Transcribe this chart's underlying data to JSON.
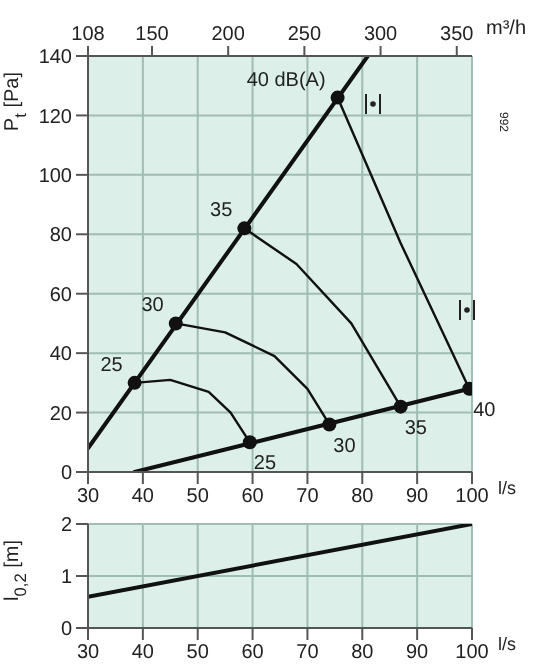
{
  "chart_data": [
    {
      "type": "line",
      "xlabel": "l/s",
      "x2label": "m³/h",
      "ylabel": "P$_{t}$ [Pa]",
      "xlim": [
        30,
        100
      ],
      "xticks": [
        30,
        40,
        50,
        60,
        70,
        80,
        90,
        100
      ],
      "x2lim": [
        108,
        360
      ],
      "x2ticks": [
        108,
        150,
        200,
        250,
        300,
        350
      ],
      "ylim": [
        0,
        140
      ],
      "yticks": [
        0,
        20,
        40,
        60,
        80,
        100,
        120,
        140
      ],
      "grid": true,
      "series": [
        {
          "x": [
            30,
            81
          ],
          "values": [
            8,
            140
          ],
          "color": "#111111"
        },
        {
          "x": [
            38.5,
            99.5
          ],
          "values": [
            0,
            28
          ],
          "color": "#111111"
        },
        {
          "x": [
            38.5,
            45,
            52,
            56,
            59.5
          ],
          "values": [
            30,
            31,
            27,
            20,
            10
          ],
          "color": "#111111"
        },
        {
          "x": [
            46,
            55,
            64,
            70,
            74
          ],
          "values": [
            50,
            47,
            39,
            28,
            16
          ],
          "color": "#111111"
        },
        {
          "x": [
            58.5,
            68,
            78,
            87
          ],
          "values": [
            82,
            70,
            50,
            22
          ],
          "color": "#111111"
        },
        {
          "x": [
            75.5,
            87,
            99.5
          ],
          "values": [
            126,
            77,
            28
          ],
          "color": "#111111"
        },
        {
          "type": "scatter",
          "x": [
            38.5,
            46,
            58.5,
            75.5,
            59.5,
            74,
            87,
            99.5
          ],
          "values": [
            30,
            50,
            82,
            126,
            10,
            16,
            22,
            28
          ],
          "color": "#111111"
        }
      ],
      "annotations": [
        {
          "text": "25",
          "x": 38.5,
          "y": 30
        },
        {
          "text": "30",
          "x": 46,
          "y": 50
        },
        {
          "text": "35",
          "x": 58.5,
          "y": 82
        },
        {
          "text": "40 dB(A)",
          "x": 75.5,
          "y": 126
        },
        {
          "text": "25",
          "x": 59.5,
          "y": 10
        },
        {
          "text": "30",
          "x": 74,
          "y": 16
        },
        {
          "text": "35",
          "x": 87,
          "y": 22
        },
        {
          "text": "40",
          "x": 99.5,
          "y": 28
        },
        "992"
      ]
    },
    {
      "type": "line",
      "xlabel": "l/s",
      "ylabel": "l$_{0,2}$ [m]",
      "xlim": [
        30,
        100
      ],
      "xticks": [
        30,
        40,
        50,
        60,
        70,
        80,
        90,
        100
      ],
      "ylim": [
        0,
        2
      ],
      "yticks": [
        0,
        1,
        2
      ],
      "grid": true,
      "series": [
        {
          "x": [
            30,
            100
          ],
          "values": [
            0.6,
            2
          ],
          "color": "#111111"
        }
      ]
    }
  ]
}
